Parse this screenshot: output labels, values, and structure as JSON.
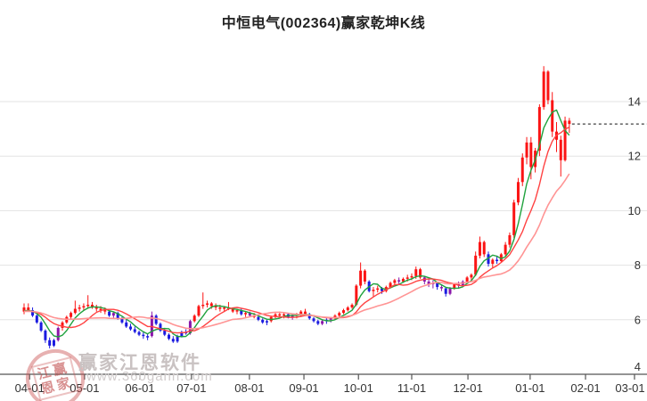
{
  "title": "中恒电气(002364)赢家乾坤K线",
  "watermark": {
    "logo_line1": "江赢",
    "logo_line2": "恩家",
    "name": "赢家江恩软件",
    "url": "www.360gann.com"
  },
  "chart_data": {
    "type": "candlestick",
    "title": "中恒电气(002364)赢家乾坤K线",
    "x_ticks": [
      {
        "label": "04-01",
        "pos": 1.3
      },
      {
        "label": "05-01",
        "pos": 14.2
      },
      {
        "label": "06-01",
        "pos": 27.2
      },
      {
        "label": "07-01",
        "pos": 39.3
      },
      {
        "label": "08-01",
        "pos": 52.9
      },
      {
        "label": "09-01",
        "pos": 65.7
      },
      {
        "label": "10-01",
        "pos": 78.5
      },
      {
        "label": "11-01",
        "pos": 91.0
      },
      {
        "label": "12-01",
        "pos": 104.2
      },
      {
        "label": "01-01",
        "pos": 118.8
      },
      {
        "label": "02-01",
        "pos": 131.8
      },
      {
        "label": "03-01",
        "pos": 143.3
      }
    ],
    "y_ticks": [
      4,
      6,
      8,
      10,
      12,
      14
    ],
    "y_range": [
      4,
      16.5
    ],
    "grid": true,
    "legend": "none",
    "last_price": 13.18,
    "ma_seed": 6.3,
    "ma_lines": [
      {
        "name": "ma-fast",
        "window": 5,
        "color": "#1fa23d",
        "width": 1.4
      },
      {
        "name": "ma-mid",
        "window": 10,
        "color": "#ff4242",
        "width": 1.4
      },
      {
        "name": "ma-slow",
        "window": 20,
        "color": "#ff9494",
        "width": 1.6
      }
    ],
    "colors": {
      "up": "#fb1414",
      "down": "#1a1ae0",
      "signal": "#8a16aa",
      "grid": "#e3e3e3",
      "axis": "#555555",
      "label": "#333333",
      "last_price_line": "#111111"
    },
    "candles": [
      [
        6.3,
        6.6,
        6.2,
        6.45,
        "r"
      ],
      [
        6.45,
        6.6,
        6.3,
        6.35,
        "r"
      ],
      [
        6.35,
        6.45,
        6.1,
        6.15,
        "b"
      ],
      [
        6.15,
        6.2,
        5.85,
        5.9,
        "b"
      ],
      [
        5.9,
        5.95,
        5.55,
        5.6,
        "b"
      ],
      [
        5.6,
        5.65,
        5.15,
        5.25,
        "b"
      ],
      [
        5.25,
        5.35,
        4.95,
        5.05,
        "b"
      ],
      [
        5.05,
        5.3,
        5.0,
        5.25,
        "b"
      ],
      [
        5.25,
        5.75,
        5.2,
        5.7,
        "p"
      ],
      [
        5.7,
        5.95,
        5.6,
        5.9,
        "r"
      ],
      [
        5.9,
        6.15,
        5.85,
        6.1,
        "r"
      ],
      [
        6.1,
        6.3,
        6.0,
        6.25,
        "r"
      ],
      [
        6.25,
        6.7,
        6.2,
        6.4,
        "r"
      ],
      [
        6.4,
        6.55,
        6.3,
        6.45,
        "r"
      ],
      [
        6.45,
        6.6,
        6.35,
        6.5,
        "r"
      ],
      [
        6.5,
        6.9,
        6.4,
        6.55,
        "r"
      ],
      [
        6.55,
        6.65,
        6.4,
        6.45,
        "r"
      ],
      [
        6.45,
        6.55,
        6.3,
        6.4,
        "r"
      ],
      [
        6.4,
        6.5,
        6.25,
        6.35,
        "r"
      ],
      [
        6.35,
        6.45,
        6.2,
        6.3,
        "r"
      ],
      [
        6.3,
        6.35,
        6.1,
        6.15,
        "b"
      ],
      [
        6.15,
        6.3,
        6.05,
        6.25,
        "p"
      ],
      [
        6.25,
        6.3,
        6.0,
        6.05,
        "b"
      ],
      [
        6.05,
        6.1,
        5.85,
        5.9,
        "b"
      ],
      [
        5.9,
        6.0,
        5.7,
        5.75,
        "b"
      ],
      [
        5.75,
        5.85,
        5.6,
        5.65,
        "b"
      ],
      [
        5.65,
        5.75,
        5.5,
        5.55,
        "b"
      ],
      [
        5.55,
        5.6,
        5.4,
        5.45,
        "b"
      ],
      [
        5.45,
        5.55,
        5.3,
        5.4,
        "b"
      ],
      [
        5.4,
        5.5,
        5.25,
        5.35,
        "b"
      ],
      [
        5.4,
        6.3,
        5.35,
        6.15,
        "p"
      ],
      [
        6.15,
        6.2,
        5.8,
        5.85,
        "b"
      ],
      [
        5.85,
        5.9,
        5.55,
        5.6,
        "b"
      ],
      [
        5.6,
        5.7,
        5.4,
        5.45,
        "b"
      ],
      [
        5.45,
        5.5,
        5.25,
        5.3,
        "b"
      ],
      [
        5.3,
        5.4,
        5.15,
        5.2,
        "b"
      ],
      [
        5.2,
        5.45,
        5.15,
        5.4,
        "b"
      ],
      [
        5.4,
        5.6,
        5.35,
        5.55,
        "b"
      ],
      [
        5.55,
        5.65,
        5.45,
        5.5,
        "b"
      ],
      [
        5.5,
        6.0,
        5.45,
        5.95,
        "p"
      ],
      [
        5.95,
        6.2,
        5.9,
        6.15,
        "r"
      ],
      [
        6.15,
        6.55,
        6.1,
        6.5,
        "r"
      ],
      [
        6.5,
        7.0,
        6.4,
        6.55,
        "r"
      ],
      [
        6.55,
        6.7,
        6.45,
        6.6,
        "r"
      ],
      [
        6.6,
        6.65,
        6.4,
        6.5,
        "r"
      ],
      [
        6.5,
        6.6,
        6.35,
        6.45,
        "r"
      ],
      [
        6.45,
        6.55,
        6.3,
        6.4,
        "r"
      ],
      [
        6.4,
        6.5,
        6.3,
        6.45,
        "r"
      ],
      [
        6.45,
        6.65,
        6.35,
        6.4,
        "r"
      ],
      [
        6.4,
        6.45,
        6.25,
        6.3,
        "r"
      ],
      [
        6.3,
        6.4,
        6.2,
        6.35,
        "r"
      ],
      [
        6.35,
        6.4,
        6.15,
        6.2,
        "b"
      ],
      [
        6.2,
        6.3,
        6.1,
        6.25,
        "r"
      ],
      [
        6.25,
        6.3,
        6.1,
        6.15,
        "p"
      ],
      [
        6.15,
        6.25,
        6.05,
        6.1,
        "r"
      ],
      [
        6.1,
        6.15,
        5.95,
        6.0,
        "b"
      ],
      [
        6.0,
        6.05,
        5.85,
        5.9,
        "b"
      ],
      [
        5.9,
        6.0,
        5.8,
        5.95,
        "b"
      ],
      [
        5.95,
        6.15,
        5.9,
        6.1,
        "r"
      ],
      [
        6.1,
        6.25,
        6.05,
        6.2,
        "r"
      ],
      [
        6.2,
        6.3,
        6.1,
        6.15,
        "r"
      ],
      [
        6.15,
        6.25,
        6.05,
        6.2,
        "r"
      ],
      [
        6.2,
        6.25,
        6.05,
        6.1,
        "b"
      ],
      [
        6.1,
        6.2,
        6.0,
        6.15,
        "p"
      ],
      [
        6.15,
        6.25,
        6.05,
        6.2,
        "r"
      ],
      [
        6.2,
        6.35,
        6.1,
        6.3,
        "r"
      ],
      [
        6.3,
        6.4,
        6.15,
        6.2,
        "r"
      ],
      [
        6.2,
        6.25,
        6.0,
        6.05,
        "b"
      ],
      [
        6.05,
        6.1,
        5.9,
        5.95,
        "b"
      ],
      [
        5.95,
        6.0,
        5.8,
        5.85,
        "b"
      ],
      [
        5.85,
        6.0,
        5.8,
        5.95,
        "p"
      ],
      [
        5.95,
        6.05,
        5.85,
        6.0,
        "b"
      ],
      [
        6.0,
        6.1,
        5.9,
        6.05,
        "p"
      ],
      [
        6.05,
        6.2,
        6.0,
        6.15,
        "r"
      ],
      [
        6.15,
        6.3,
        6.1,
        6.25,
        "r"
      ],
      [
        6.25,
        6.4,
        6.2,
        6.35,
        "r"
      ],
      [
        6.35,
        6.5,
        6.3,
        6.45,
        "r"
      ],
      [
        6.45,
        6.6,
        6.4,
        6.55,
        "r"
      ],
      [
        6.55,
        7.3,
        6.5,
        7.25,
        "r"
      ],
      [
        7.25,
        8.1,
        7.15,
        7.8,
        "r"
      ],
      [
        7.8,
        7.85,
        7.3,
        7.4,
        "r"
      ],
      [
        7.4,
        7.45,
        7.0,
        7.05,
        "b"
      ],
      [
        7.05,
        7.2,
        6.85,
        7.1,
        "r"
      ],
      [
        7.1,
        7.25,
        7.0,
        7.15,
        "r"
      ],
      [
        7.15,
        7.2,
        6.95,
        7.05,
        "b"
      ],
      [
        7.05,
        7.25,
        7.0,
        7.2,
        "r"
      ],
      [
        7.2,
        7.4,
        7.15,
        7.35,
        "r"
      ],
      [
        7.35,
        7.5,
        7.25,
        7.45,
        "r"
      ],
      [
        7.45,
        7.55,
        7.3,
        7.4,
        "p"
      ],
      [
        7.4,
        7.55,
        7.35,
        7.5,
        "r"
      ],
      [
        7.5,
        7.65,
        7.4,
        7.55,
        "r"
      ],
      [
        7.55,
        7.7,
        7.45,
        7.6,
        "r"
      ],
      [
        7.6,
        7.95,
        7.5,
        7.85,
        "r"
      ],
      [
        7.85,
        7.9,
        7.5,
        7.55,
        "r"
      ],
      [
        7.55,
        7.6,
        7.3,
        7.4,
        "p"
      ],
      [
        7.4,
        7.5,
        7.2,
        7.3,
        "p"
      ],
      [
        7.3,
        7.45,
        7.15,
        7.35,
        "p"
      ],
      [
        7.35,
        7.4,
        7.1,
        7.2,
        "b"
      ],
      [
        7.2,
        7.3,
        7.05,
        7.15,
        "p"
      ],
      [
        7.15,
        7.2,
        6.85,
        6.95,
        "b"
      ],
      [
        6.95,
        7.2,
        6.9,
        7.15,
        "p"
      ],
      [
        7.15,
        7.35,
        7.1,
        7.3,
        "r"
      ],
      [
        7.3,
        7.4,
        7.15,
        7.25,
        "p"
      ],
      [
        7.25,
        7.45,
        7.2,
        7.4,
        "p"
      ],
      [
        7.4,
        7.6,
        7.35,
        7.55,
        "r"
      ],
      [
        7.55,
        7.7,
        7.45,
        7.65,
        "r"
      ],
      [
        7.65,
        8.5,
        7.6,
        8.35,
        "r"
      ],
      [
        8.35,
        9.05,
        8.25,
        8.85,
        "r"
      ],
      [
        8.85,
        8.9,
        8.3,
        8.4,
        "r"
      ],
      [
        8.4,
        8.5,
        7.95,
        8.05,
        "b"
      ],
      [
        8.05,
        8.25,
        7.9,
        8.2,
        "r"
      ],
      [
        8.2,
        8.35,
        8.05,
        8.15,
        "b"
      ],
      [
        8.15,
        8.45,
        8.1,
        8.4,
        "r"
      ],
      [
        8.4,
        8.85,
        8.35,
        8.75,
        "r"
      ],
      [
        8.75,
        9.2,
        8.65,
        9.1,
        "r"
      ],
      [
        9.1,
        10.4,
        9.0,
        10.3,
        "r"
      ],
      [
        10.3,
        11.2,
        10.2,
        11.05,
        "r"
      ],
      [
        11.05,
        12.1,
        10.9,
        11.95,
        "r"
      ],
      [
        11.95,
        12.7,
        11.7,
        12.5,
        "r"
      ],
      [
        12.5,
        12.7,
        11.15,
        11.6,
        "r"
      ],
      [
        11.6,
        12.3,
        11.4,
        12.2,
        "r"
      ],
      [
        12.2,
        13.9,
        12.0,
        13.8,
        "r"
      ],
      [
        13.8,
        15.3,
        13.7,
        15.1,
        "r"
      ],
      [
        15.1,
        15.15,
        13.9,
        14.05,
        "r"
      ],
      [
        14.05,
        14.35,
        12.7,
        12.9,
        "r"
      ],
      [
        12.9,
        13.25,
        12.15,
        12.6,
        "r"
      ],
      [
        12.6,
        12.75,
        11.25,
        11.85,
        "r"
      ],
      [
        11.85,
        13.45,
        11.8,
        13.3,
        "r"
      ],
      [
        13.3,
        13.4,
        12.85,
        13.18,
        "r"
      ]
    ]
  }
}
